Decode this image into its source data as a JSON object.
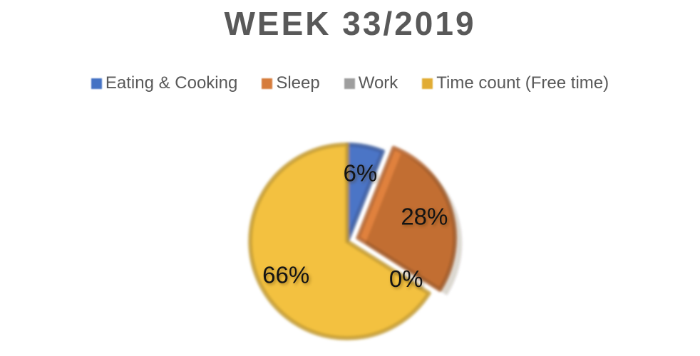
{
  "chart_data": {
    "type": "pie",
    "title": "WEEK 33/2019",
    "categories": [
      "Eating & Cooking",
      "Sleep",
      "Work",
      "Time count (Free time)"
    ],
    "values": [
      6,
      28,
      0,
      66
    ],
    "labels": [
      "6%",
      "28%",
      "0%",
      "66%"
    ],
    "series_colors": [
      "#4B74C6",
      "#E0813E",
      "#A5A5A5",
      "#F3C13F"
    ],
    "legend_colors": [
      "#4472C4",
      "#D67C3C",
      "#9E9E9E",
      "#E1AC34"
    ],
    "label_color": "#141414",
    "text_color": "#595959",
    "background": "#FFFFFF",
    "legend_position": "top",
    "start_angle_deg": 0,
    "clockwise": true,
    "exploded_index": 1,
    "total": 100
  }
}
